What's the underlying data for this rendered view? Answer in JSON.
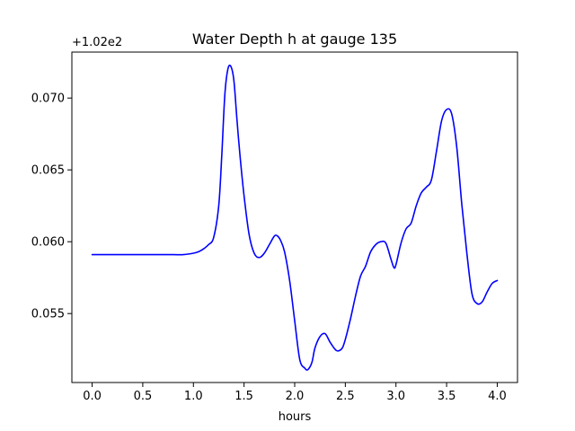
{
  "chart_data": {
    "type": "line",
    "title": "Water Depth h at gauge 135",
    "xlabel": "hours",
    "ylabel": "",
    "offset_label": "+1.02e2",
    "xlim": [
      -0.2,
      4.2
    ],
    "ylim": [
      0.0502,
      0.0732
    ],
    "xticks": [
      0.0,
      0.5,
      1.0,
      1.5,
      2.0,
      2.5,
      3.0,
      3.5,
      4.0
    ],
    "xtick_labels": [
      "0.0",
      "0.5",
      "1.0",
      "1.5",
      "2.0",
      "2.5",
      "3.0",
      "3.5",
      "4.0"
    ],
    "yticks": [
      0.055,
      0.06,
      0.065,
      0.07
    ],
    "ytick_labels": [
      "0.055",
      "0.060",
      "0.065",
      "0.070"
    ],
    "grid": false,
    "legend": "none",
    "series": [
      {
        "color": "#0000ff",
        "x": [
          0.0,
          0.3,
          0.6,
          0.8,
          0.9,
          1.0,
          1.05,
          1.1,
          1.15,
          1.2,
          1.25,
          1.28,
          1.31,
          1.34,
          1.37,
          1.4,
          1.43,
          1.46,
          1.5,
          1.55,
          1.6,
          1.65,
          1.7,
          1.75,
          1.8,
          1.83,
          1.86,
          1.9,
          1.95,
          2.0,
          2.05,
          2.1,
          2.13,
          2.17,
          2.2,
          2.25,
          2.3,
          2.35,
          2.4,
          2.43,
          2.47,
          2.5,
          2.55,
          2.6,
          2.65,
          2.7,
          2.75,
          2.8,
          2.85,
          2.9,
          2.95,
          2.98,
          3.0,
          3.05,
          3.1,
          3.15,
          3.2,
          3.25,
          3.3,
          3.35,
          3.4,
          3.45,
          3.5,
          3.55,
          3.6,
          3.65,
          3.7,
          3.75,
          3.8,
          3.85,
          3.9,
          3.95,
          4.0
        ],
        "y": [
          0.0591,
          0.0591,
          0.0591,
          0.0591,
          0.0591,
          0.0592,
          0.0593,
          0.0595,
          0.0598,
          0.0603,
          0.0625,
          0.066,
          0.0702,
          0.072,
          0.0722,
          0.0712,
          0.0685,
          0.066,
          0.0632,
          0.0605,
          0.0592,
          0.0589,
          0.0592,
          0.0598,
          0.0604,
          0.0604,
          0.0601,
          0.0593,
          0.0573,
          0.0545,
          0.0518,
          0.0512,
          0.0511,
          0.0516,
          0.0526,
          0.0534,
          0.0536,
          0.053,
          0.0525,
          0.0524,
          0.0526,
          0.0532,
          0.0546,
          0.0562,
          0.0576,
          0.0583,
          0.0593,
          0.0598,
          0.06,
          0.0599,
          0.0588,
          0.0582,
          0.0584,
          0.0599,
          0.0609,
          0.0613,
          0.0625,
          0.0634,
          0.0638,
          0.0643,
          0.0663,
          0.0684,
          0.0692,
          0.0689,
          0.0666,
          0.0626,
          0.0592,
          0.0564,
          0.0557,
          0.0558,
          0.0565,
          0.0571,
          0.0573
        ]
      }
    ]
  }
}
